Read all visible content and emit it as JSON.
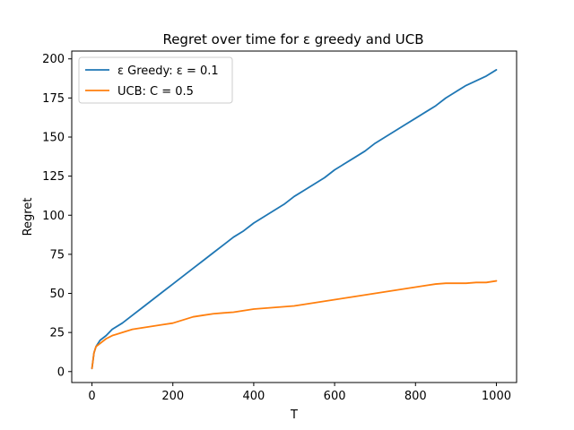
{
  "chart_data": {
    "type": "line",
    "title": "Regret over time for ε greedy and UCB",
    "xlabel": "T",
    "ylabel": "Regret",
    "xlim": [
      -50,
      1050
    ],
    "ylim": [
      -7,
      205
    ],
    "xticks": [
      0,
      200,
      400,
      600,
      800,
      1000
    ],
    "yticks": [
      0,
      25,
      50,
      75,
      100,
      125,
      150,
      175,
      200
    ],
    "grid": false,
    "legend_position": "top-left",
    "series": [
      {
        "name": "ε Greedy: ε = 0.1",
        "color": "#1f77b4",
        "points": [
          [
            0,
            2
          ],
          [
            5,
            12
          ],
          [
            10,
            16
          ],
          [
            20,
            20
          ],
          [
            35,
            23
          ],
          [
            50,
            27
          ],
          [
            75,
            31
          ],
          [
            100,
            36
          ],
          [
            125,
            41
          ],
          [
            150,
            46
          ],
          [
            175,
            51
          ],
          [
            200,
            56
          ],
          [
            225,
            61
          ],
          [
            250,
            66
          ],
          [
            275,
            71
          ],
          [
            300,
            76
          ],
          [
            325,
            81
          ],
          [
            350,
            86
          ],
          [
            375,
            90
          ],
          [
            400,
            95
          ],
          [
            425,
            99
          ],
          [
            450,
            103
          ],
          [
            475,
            107
          ],
          [
            500,
            112
          ],
          [
            525,
            116
          ],
          [
            550,
            120
          ],
          [
            575,
            124
          ],
          [
            600,
            129
          ],
          [
            625,
            133
          ],
          [
            650,
            137
          ],
          [
            675,
            141
          ],
          [
            700,
            146
          ],
          [
            725,
            150
          ],
          [
            750,
            154
          ],
          [
            775,
            158
          ],
          [
            800,
            162
          ],
          [
            825,
            166
          ],
          [
            850,
            170
          ],
          [
            875,
            175
          ],
          [
            900,
            179
          ],
          [
            925,
            183
          ],
          [
            950,
            186
          ],
          [
            975,
            189
          ],
          [
            1000,
            193
          ]
        ]
      },
      {
        "name": "UCB: C = 0.5",
        "color": "#ff7f0e",
        "points": [
          [
            0,
            2
          ],
          [
            5,
            12
          ],
          [
            10,
            16
          ],
          [
            20,
            18
          ],
          [
            35,
            21
          ],
          [
            50,
            23
          ],
          [
            75,
            25
          ],
          [
            100,
            27
          ],
          [
            125,
            28
          ],
          [
            150,
            29
          ],
          [
            175,
            30
          ],
          [
            200,
            31
          ],
          [
            225,
            33
          ],
          [
            250,
            35
          ],
          [
            275,
            36
          ],
          [
            300,
            37
          ],
          [
            325,
            37.5
          ],
          [
            350,
            38
          ],
          [
            375,
            39
          ],
          [
            400,
            40
          ],
          [
            425,
            40.5
          ],
          [
            450,
            41
          ],
          [
            475,
            41.5
          ],
          [
            500,
            42
          ],
          [
            525,
            43
          ],
          [
            550,
            44
          ],
          [
            575,
            45
          ],
          [
            600,
            46
          ],
          [
            625,
            47
          ],
          [
            650,
            48
          ],
          [
            675,
            49
          ],
          [
            700,
            50
          ],
          [
            725,
            51
          ],
          [
            750,
            52
          ],
          [
            775,
            53
          ],
          [
            800,
            54
          ],
          [
            825,
            55
          ],
          [
            850,
            56
          ],
          [
            875,
            56.5
          ],
          [
            900,
            56.5
          ],
          [
            925,
            56.5
          ],
          [
            950,
            57
          ],
          [
            975,
            57
          ],
          [
            1000,
            58
          ]
        ]
      }
    ]
  }
}
